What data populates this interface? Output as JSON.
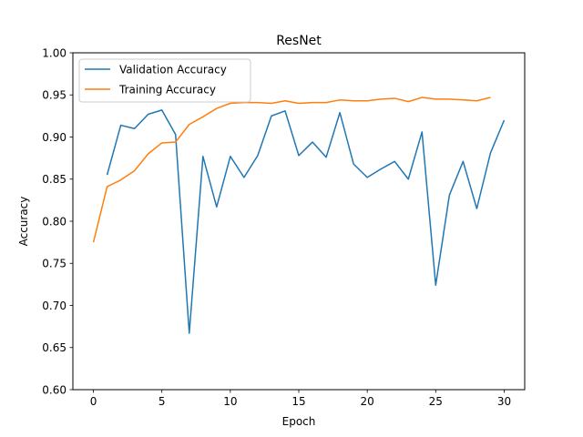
{
  "chart_data": {
    "type": "line",
    "title": "ResNet",
    "xlabel": "Epoch",
    "ylabel": "Accuracy",
    "xlim": [
      -1.5,
      31.5
    ],
    "ylim": [
      0.6,
      1.0
    ],
    "xticks": [
      0,
      5,
      10,
      15,
      20,
      25,
      30
    ],
    "xtick_labels": [
      "0",
      "5",
      "10",
      "15",
      "20",
      "25",
      "30"
    ],
    "yticks": [
      0.6,
      0.65,
      0.7,
      0.75,
      0.8,
      0.85,
      0.9,
      0.95,
      1.0
    ],
    "ytick_labels": [
      "0.60",
      "0.65",
      "0.70",
      "0.75",
      "0.80",
      "0.85",
      "0.90",
      "0.95",
      "1.00"
    ],
    "grid": false,
    "legend_position": "top-left",
    "series": [
      {
        "name": "Validation Accuracy",
        "color": "#1f77b4",
        "x": [
          1,
          2,
          3,
          4,
          5,
          6,
          7,
          8,
          9,
          10,
          11,
          12,
          13,
          14,
          15,
          16,
          17,
          18,
          19,
          20,
          21,
          22,
          23,
          24,
          25,
          26,
          27,
          28,
          29,
          30
        ],
        "values": [
          0.855,
          0.914,
          0.91,
          0.927,
          0.932,
          0.903,
          0.667,
          0.877,
          0.817,
          0.877,
          0.852,
          0.878,
          0.925,
          0.931,
          0.878,
          0.894,
          0.876,
          0.929,
          0.868,
          0.852,
          0.862,
          0.871,
          0.85,
          0.906,
          0.724,
          0.831,
          0.871,
          0.815,
          0.881,
          0.92
        ]
      },
      {
        "name": "Training Accuracy",
        "color": "#ff7f0e",
        "x": [
          0,
          1,
          2,
          3,
          4,
          5,
          6,
          7,
          8,
          9,
          10,
          11,
          12,
          13,
          14,
          15,
          16,
          17,
          18,
          19,
          20,
          21,
          22,
          23,
          24,
          25,
          26,
          27,
          28,
          29
        ],
        "values": [
          0.775,
          0.841,
          0.849,
          0.86,
          0.88,
          0.893,
          0.894,
          0.915,
          0.924,
          0.934,
          0.94,
          0.941,
          0.941,
          0.94,
          0.943,
          0.94,
          0.941,
          0.941,
          0.944,
          0.943,
          0.943,
          0.945,
          0.946,
          0.942,
          0.947,
          0.945,
          0.945,
          0.944,
          0.943,
          0.947
        ]
      }
    ]
  }
}
